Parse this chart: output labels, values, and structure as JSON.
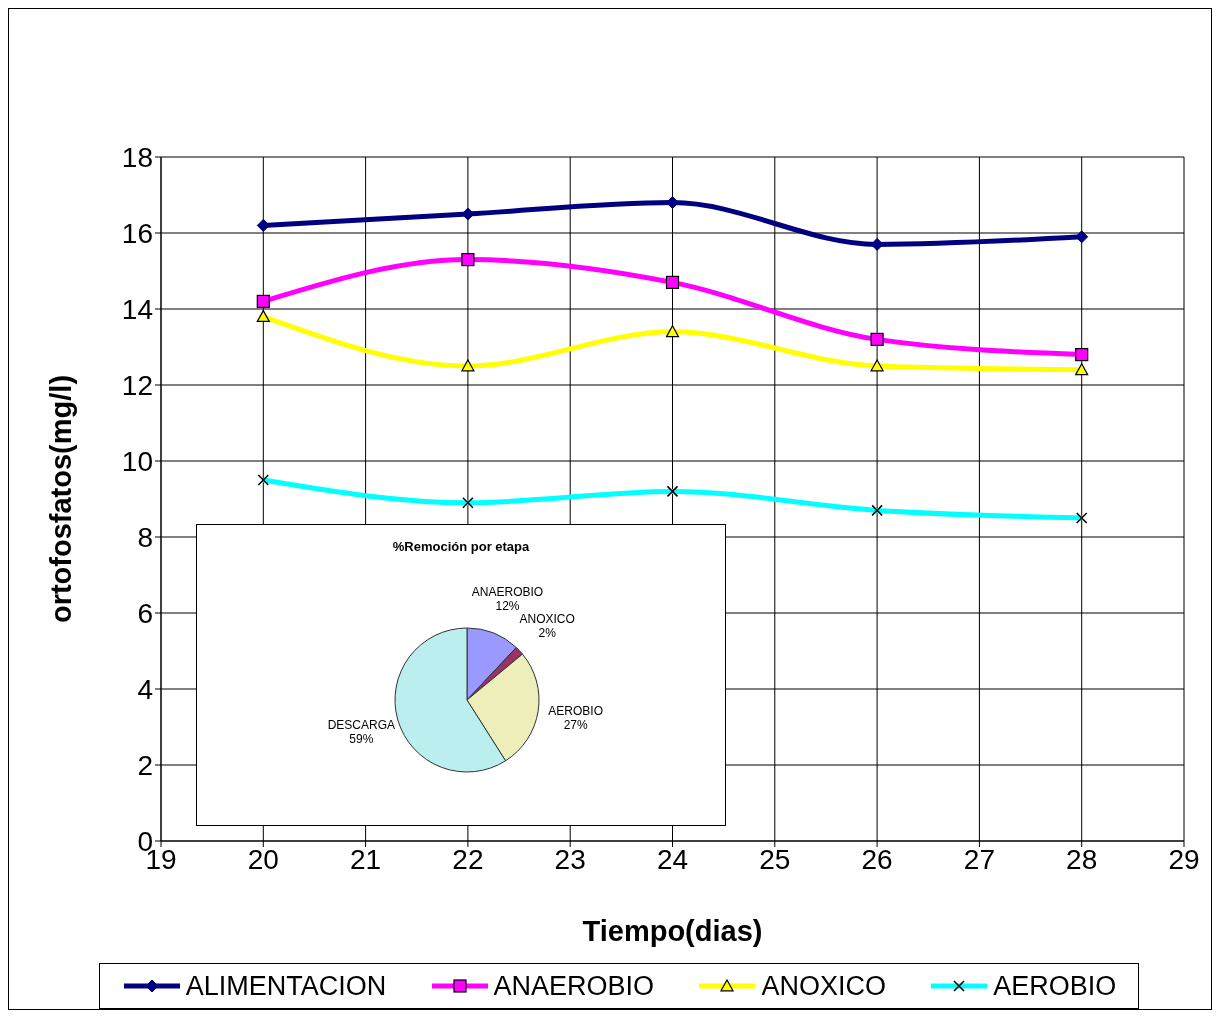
{
  "chart_data": [
    {
      "type": "line",
      "xlabel": "Tiempo(dias)",
      "ylabel": "ortofosfatos(mg/l)",
      "x": [
        20,
        22,
        24,
        26,
        28
      ],
      "xlim": [
        19,
        29
      ],
      "xticks": [
        19,
        20,
        21,
        22,
        23,
        24,
        25,
        26,
        27,
        28,
        29
      ],
      "ylim": [
        0,
        18
      ],
      "yticks": [
        0,
        2,
        4,
        6,
        8,
        10,
        12,
        14,
        16,
        18
      ],
      "grid": true,
      "legend": "bottom",
      "series": [
        {
          "name": "ALIMENTACION",
          "color": "#000080",
          "marker": "diamond",
          "values": [
            16.2,
            16.5,
            16.8,
            15.7,
            15.9
          ]
        },
        {
          "name": "ANAEROBIO",
          "color": "#ff00ff",
          "marker": "square",
          "values": [
            14.2,
            15.3,
            14.7,
            13.2,
            12.8
          ]
        },
        {
          "name": "ANOXICO",
          "color": "#ffff00",
          "marker": "triangle",
          "values": [
            13.8,
            12.5,
            13.4,
            12.5,
            12.4
          ]
        },
        {
          "name": "AEROBIO",
          "color": "#00ffff",
          "marker": "cross",
          "values": [
            9.5,
            8.9,
            9.2,
            8.7,
            8.5
          ]
        }
      ]
    },
    {
      "type": "pie",
      "title": "%Remoción por etapa",
      "categories": [
        "ANAEROBIO",
        "ANOXICO",
        "AEROBIO",
        "DESCARGA"
      ],
      "values": [
        12,
        2,
        27,
        59
      ],
      "colors": [
        "#9999ff",
        "#993366",
        "#eeeebb",
        "#bbeeee"
      ],
      "value_labels": [
        "12%",
        "2%",
        "27%",
        "59%"
      ]
    }
  ]
}
